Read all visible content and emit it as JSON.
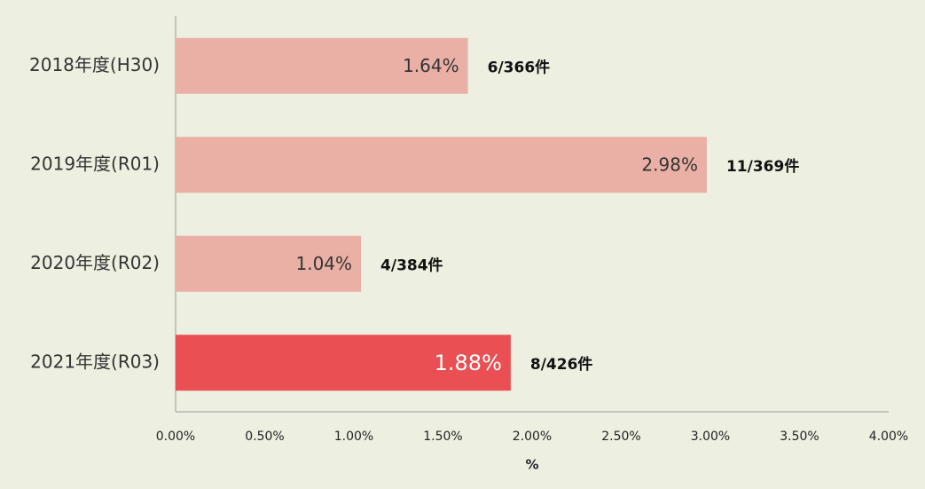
{
  "chart_data": {
    "type": "bar",
    "orientation": "horizontal",
    "categories": [
      "2018年度(H30)",
      "2019年度(R01)",
      "2020年度(R02)",
      "2021年度(R03)"
    ],
    "values": [
      1.64,
      2.98,
      1.04,
      1.88
    ],
    "value_labels": [
      "1.64%",
      "2.98%",
      "1.04%",
      "1.88%"
    ],
    "annotations": [
      "6/366件",
      "11/369件",
      "4/384件",
      "8/426件"
    ],
    "colors": [
      "#ebb0a5",
      "#ebb0a5",
      "#ebb0a5",
      "#e94f53"
    ],
    "xlabel": "%",
    "xlim": [
      0,
      4
    ],
    "xticks": [
      {
        "value": 0,
        "label": "0.00%"
      },
      {
        "value": 0.5,
        "label": "0.50%"
      },
      {
        "value": 1,
        "label": "1.00%"
      },
      {
        "value": 1.5,
        "label": "1.50%"
      },
      {
        "value": 2,
        "label": "2.00%"
      },
      {
        "value": 2.5,
        "label": "2.50%"
      },
      {
        "value": 3,
        "label": "3.00%"
      },
      {
        "value": 3.5,
        "label": "3.50%"
      },
      {
        "value": 4,
        "label": "4.00%"
      }
    ],
    "grid": false
  }
}
